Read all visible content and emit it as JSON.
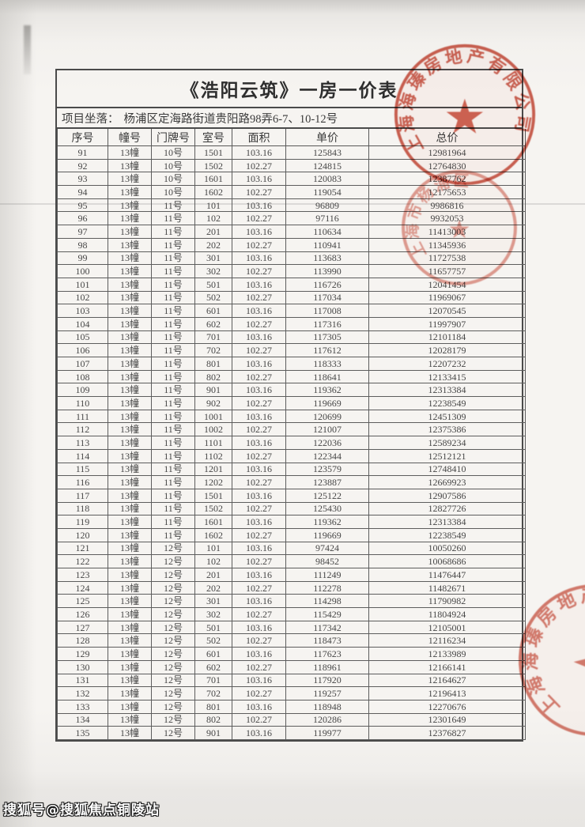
{
  "page": {
    "title": "《浩阳云筑》一房一价表",
    "location_label": "项目坐落：",
    "location_value": "杨浦区定海路街道贵阳路98弄6-7、10-12号"
  },
  "table": {
    "headers": [
      "序号",
      "幢号",
      "门牌号",
      "室号",
      "面积",
      "单价",
      "总价"
    ],
    "rows": [
      [
        "91",
        "13幢",
        "10号",
        "1501",
        "103.16",
        "125843",
        "12981964"
      ],
      [
        "92",
        "13幢",
        "10号",
        "1502",
        "102.27",
        "124815",
        "12764830"
      ],
      [
        "93",
        "13幢",
        "10号",
        "1601",
        "103.16",
        "120083",
        "12387762"
      ],
      [
        "94",
        "13幢",
        "10号",
        "1602",
        "102.27",
        "119054",
        "12175653"
      ],
      [
        "95",
        "13幢",
        "11号",
        "101",
        "103.16",
        "96809",
        "9986816"
      ],
      [
        "96",
        "13幢",
        "11号",
        "102",
        "102.27",
        "97116",
        "9932053"
      ],
      [
        "97",
        "13幢",
        "11号",
        "201",
        "103.16",
        "110634",
        "11413003"
      ],
      [
        "98",
        "13幢",
        "11号",
        "202",
        "102.27",
        "110941",
        "11345936"
      ],
      [
        "99",
        "13幢",
        "11号",
        "301",
        "103.16",
        "113683",
        "11727538"
      ],
      [
        "100",
        "13幢",
        "11号",
        "302",
        "102.27",
        "113990",
        "11657757"
      ],
      [
        "101",
        "13幢",
        "11号",
        "501",
        "103.16",
        "116726",
        "12041454"
      ],
      [
        "102",
        "13幢",
        "11号",
        "502",
        "102.27",
        "117034",
        "11969067"
      ],
      [
        "103",
        "13幢",
        "11号",
        "601",
        "103.16",
        "117008",
        "12070545"
      ],
      [
        "104",
        "13幢",
        "11号",
        "602",
        "102.27",
        "117316",
        "11997907"
      ],
      [
        "105",
        "13幢",
        "11号",
        "701",
        "103.16",
        "117305",
        "12101184"
      ],
      [
        "106",
        "13幢",
        "11号",
        "702",
        "102.27",
        "117612",
        "12028179"
      ],
      [
        "107",
        "13幢",
        "11号",
        "801",
        "103.16",
        "118333",
        "12207232"
      ],
      [
        "108",
        "13幢",
        "11号",
        "802",
        "102.27",
        "118641",
        "12133415"
      ],
      [
        "109",
        "13幢",
        "11号",
        "901",
        "103.16",
        "119362",
        "12313384"
      ],
      [
        "110",
        "13幢",
        "11号",
        "902",
        "102.27",
        "119669",
        "12238549"
      ],
      [
        "111",
        "13幢",
        "11号",
        "1001",
        "103.16",
        "120699",
        "12451309"
      ],
      [
        "112",
        "13幢",
        "11号",
        "1002",
        "102.27",
        "121007",
        "12375386"
      ],
      [
        "113",
        "13幢",
        "11号",
        "1101",
        "103.16",
        "122036",
        "12589234"
      ],
      [
        "114",
        "13幢",
        "11号",
        "1102",
        "102.27",
        "122344",
        "12512121"
      ],
      [
        "115",
        "13幢",
        "11号",
        "1201",
        "103.16",
        "123579",
        "12748410"
      ],
      [
        "116",
        "13幢",
        "11号",
        "1202",
        "102.27",
        "123887",
        "12669923"
      ],
      [
        "117",
        "13幢",
        "11号",
        "1501",
        "103.16",
        "125122",
        "12907586"
      ],
      [
        "118",
        "13幢",
        "11号",
        "1502",
        "102.27",
        "125430",
        "12827726"
      ],
      [
        "119",
        "13幢",
        "11号",
        "1601",
        "103.16",
        "119362",
        "12313384"
      ],
      [
        "120",
        "13幢",
        "11号",
        "1602",
        "102.27",
        "119669",
        "12238549"
      ],
      [
        "121",
        "13幢",
        "12号",
        "101",
        "103.16",
        "97424",
        "10050260"
      ],
      [
        "122",
        "13幢",
        "12号",
        "102",
        "102.27",
        "98452",
        "10068686"
      ],
      [
        "123",
        "13幢",
        "12号",
        "201",
        "103.16",
        "111249",
        "11476447"
      ],
      [
        "124",
        "13幢",
        "12号",
        "202",
        "102.27",
        "112278",
        "11482671"
      ],
      [
        "125",
        "13幢",
        "12号",
        "301",
        "103.16",
        "114298",
        "11790982"
      ],
      [
        "126",
        "13幢",
        "12号",
        "302",
        "102.27",
        "115429",
        "11804924"
      ],
      [
        "127",
        "13幢",
        "12号",
        "501",
        "103.16",
        "117342",
        "12105001"
      ],
      [
        "128",
        "13幢",
        "12号",
        "502",
        "102.27",
        "118473",
        "12116234"
      ],
      [
        "129",
        "13幢",
        "12号",
        "601",
        "103.16",
        "117623",
        "12133989"
      ],
      [
        "130",
        "13幢",
        "12号",
        "602",
        "102.27",
        "118961",
        "12166141"
      ],
      [
        "131",
        "13幢",
        "12号",
        "701",
        "103.16",
        "117920",
        "12164627"
      ],
      [
        "132",
        "13幢",
        "12号",
        "702",
        "102.27",
        "119257",
        "12196413"
      ],
      [
        "133",
        "13幢",
        "12号",
        "801",
        "103.16",
        "118948",
        "12270676"
      ],
      [
        "134",
        "13幢",
        "12号",
        "802",
        "102.27",
        "120286",
        "12301649"
      ],
      [
        "135",
        "13幢",
        "12号",
        "901",
        "103.16",
        "119977",
        "12376827"
      ]
    ]
  },
  "stamps": {
    "company_seal_top": {
      "arc_text": "上海海瑧房地产有限公司",
      "star": "★"
    },
    "record_seal": {
      "arc_text": "上海市杨浦区",
      "star": "★"
    },
    "company_seal_bottom": {
      "arc_text": "上海海瑧房地产有限公司",
      "star": "★"
    }
  },
  "watermark": {
    "text": "搜狐号@搜狐焦点铜陵站"
  },
  "colors": {
    "stamp_red": "#c4402e",
    "text": "#3f3f3f",
    "border": "#4a4a4a"
  }
}
